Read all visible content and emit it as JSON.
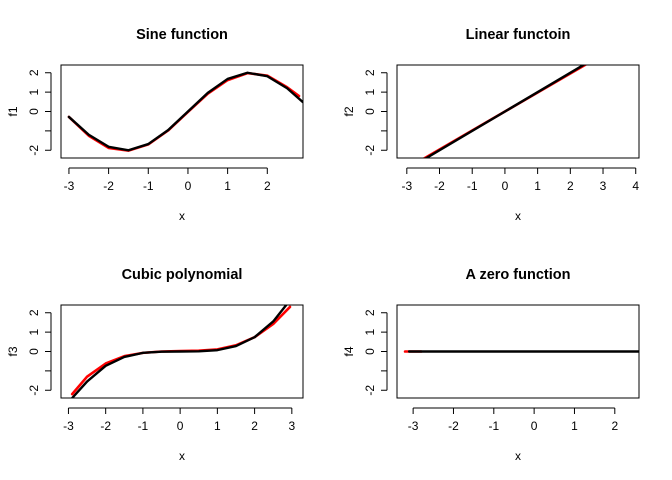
{
  "chart_data": [
    {
      "type": "line",
      "title": "Sine function",
      "xlabel": "x",
      "ylabel": "f1",
      "xlim": [
        -3.2,
        2.9
      ],
      "ylim": [
        -2.4,
        2.4
      ],
      "xticks": [
        -3,
        -2,
        -1,
        0,
        1,
        2
      ],
      "yticks": [
        -2,
        -1,
        0,
        1,
        2
      ],
      "ytick_labels": [
        "-2",
        "",
        "0",
        "1",
        "2"
      ],
      "grid": false,
      "series": [
        {
          "color": "#ff0000",
          "x": [
            -3.0,
            -2.5,
            -2.0,
            -1.5,
            -1.0,
            -0.5,
            0.0,
            0.5,
            1.0,
            1.5,
            2.0,
            2.5,
            2.8
          ],
          "y": [
            -0.28,
            -1.25,
            -1.88,
            -2.02,
            -1.7,
            -0.98,
            -0.02,
            0.92,
            1.62,
            1.98,
            1.85,
            1.25,
            0.8
          ]
        },
        {
          "color": "#000000",
          "x": [
            -3.0,
            -2.5,
            -2.0,
            -1.5,
            -1.0,
            -0.5,
            0.0,
            0.5,
            1.0,
            1.5,
            2.0,
            2.5,
            2.9
          ],
          "y": [
            -0.28,
            -1.2,
            -1.82,
            -2.0,
            -1.68,
            -0.96,
            0.0,
            0.96,
            1.68,
            2.0,
            1.82,
            1.2,
            0.48
          ]
        }
      ]
    },
    {
      "type": "line",
      "title": "Linear functoin",
      "xlabel": "x",
      "ylabel": "f2",
      "xlim": [
        -3.3,
        4.1
      ],
      "ylim": [
        -2.4,
        2.4
      ],
      "xticks": [
        -3,
        -2,
        -1,
        0,
        1,
        2,
        3,
        4
      ],
      "yticks": [
        -2,
        -1,
        0,
        1,
        2
      ],
      "ytick_labels": [
        "-2",
        "",
        "0",
        "1",
        "2"
      ],
      "grid": false,
      "series": [
        {
          "color": "#ff0000",
          "x": [
            -2.5,
            2.5
          ],
          "y": [
            -2.45,
            2.45
          ]
        },
        {
          "color": "#000000",
          "x": [
            -2.6,
            2.5
          ],
          "y": [
            -2.6,
            2.5
          ]
        }
      ]
    },
    {
      "type": "line",
      "title": "Cubic polynomial",
      "xlabel": "x",
      "ylabel": "f3",
      "xlim": [
        -3.2,
        3.3
      ],
      "ylim": [
        -2.4,
        2.4
      ],
      "xticks": [
        -3,
        -2,
        -1,
        0,
        1,
        2,
        3
      ],
      "yticks": [
        -2,
        -1,
        0,
        1,
        2
      ],
      "ytick_labels": [
        "-2",
        "",
        "0",
        "1",
        "2"
      ],
      "grid": false,
      "series": [
        {
          "color": "#ff0000",
          "x": [
            -2.9,
            -2.5,
            -2.0,
            -1.5,
            -1.0,
            -0.5,
            0.0,
            0.5,
            1.0,
            1.5,
            2.0,
            2.5,
            2.95
          ],
          "y": [
            -2.2,
            -1.3,
            -0.62,
            -0.24,
            -0.07,
            0.0,
            0.02,
            0.04,
            0.11,
            0.32,
            0.74,
            1.42,
            2.3
          ]
        },
        {
          "color": "#000000",
          "x": [
            -2.9,
            -2.5,
            -2.0,
            -1.5,
            -1.0,
            -0.5,
            0.0,
            0.5,
            1.0,
            1.5,
            2.0,
            2.5,
            2.85
          ],
          "y": [
            -2.4,
            -1.55,
            -0.74,
            -0.28,
            -0.07,
            -0.01,
            0.0,
            0.01,
            0.07,
            0.28,
            0.74,
            1.55,
            2.4
          ]
        }
      ]
    },
    {
      "type": "line",
      "title": "A zero function",
      "xlabel": "x",
      "ylabel": "f4",
      "xlim": [
        -3.4,
        2.6
      ],
      "ylim": [
        -2.4,
        2.4
      ],
      "xticks": [
        -3,
        -2,
        -1,
        0,
        1,
        2
      ],
      "yticks": [
        -2,
        -1,
        0,
        1,
        2
      ],
      "ytick_labels": [
        "-2",
        "",
        "0",
        "1",
        "2"
      ],
      "grid": false,
      "series": [
        {
          "color": "#ff0000",
          "x": [
            -3.2,
            -2.8
          ],
          "y": [
            0.0,
            0.0
          ]
        },
        {
          "color": "#000000",
          "x": [
            -3.1,
            2.6
          ],
          "y": [
            0.0,
            0.0
          ]
        }
      ]
    }
  ]
}
